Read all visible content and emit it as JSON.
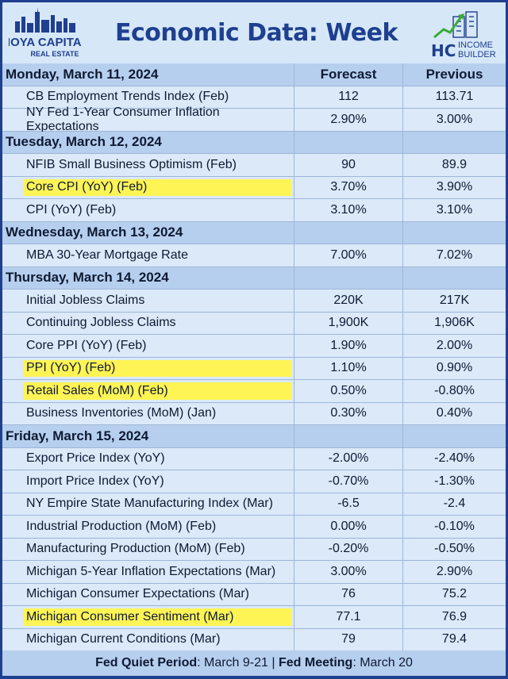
{
  "header": {
    "logo_left_line1": "HOYA CAPITAL",
    "logo_left_line2": "REAL ESTATE",
    "title": "Economic Data: Week Ahead",
    "logo_right_mark": "HC",
    "logo_right_line1": "INCOME",
    "logo_right_line2": "BUILDER"
  },
  "columns": {
    "forecast": "Forecast",
    "previous": "Previous"
  },
  "days": [
    {
      "date": "Monday, March 11, 2024",
      "items": [
        {
          "label": "CB Employment Trends Index (Feb)",
          "forecast": "112",
          "previous": "113.71",
          "highlight": false
        },
        {
          "label": "NY Fed 1-Year Consumer Inflation Expectations",
          "forecast": "2.90%",
          "previous": "3.00%",
          "highlight": false
        }
      ]
    },
    {
      "date": "Tuesday, March 12, 2024",
      "items": [
        {
          "label": "NFIB Small Business Optimism (Feb)",
          "forecast": "90",
          "previous": "89.9",
          "highlight": false
        },
        {
          "label": "Core CPI (YoY) (Feb)",
          "forecast": "3.70%",
          "previous": "3.90%",
          "highlight": true
        },
        {
          "label": "CPI (YoY) (Feb)",
          "forecast": "3.10%",
          "previous": "3.10%",
          "highlight": false
        }
      ]
    },
    {
      "date": "Wednesday, March 13, 2024",
      "items": [
        {
          "label": "MBA 30-Year Mortgage Rate",
          "forecast": "7.00%",
          "previous": "7.02%",
          "highlight": false
        }
      ]
    },
    {
      "date": "Thursday, March 14, 2024",
      "items": [
        {
          "label": "Initial Jobless Claims",
          "forecast": "220K",
          "previous": "217K",
          "highlight": false
        },
        {
          "label": "Continuing Jobless Claims",
          "forecast": "1,900K",
          "previous": "1,906K",
          "highlight": false
        },
        {
          "label": "Core PPI (YoY) (Feb)",
          "forecast": "1.90%",
          "previous": "2.00%",
          "highlight": false
        },
        {
          "label": "PPI (YoY) (Feb)",
          "forecast": "1.10%",
          "previous": "0.90%",
          "highlight": true
        },
        {
          "label": "Retail Sales (MoM) (Feb)",
          "forecast": "0.50%",
          "previous": "-0.80%",
          "highlight": true
        },
        {
          "label": "Business Inventories (MoM) (Jan)",
          "forecast": "0.30%",
          "previous": "0.40%",
          "highlight": false
        }
      ]
    },
    {
      "date": "Friday, March 15, 2024",
      "items": [
        {
          "label": "Export Price Index (YoY)",
          "forecast": "-2.00%",
          "previous": "-2.40%",
          "highlight": false
        },
        {
          "label": "Import Price Index (YoY)",
          "forecast": "-0.70%",
          "previous": "-1.30%",
          "highlight": false
        },
        {
          "label": "NY Empire State Manufacturing Index (Mar)",
          "forecast": "-6.5",
          "previous": "-2.4",
          "highlight": false
        },
        {
          "label": "Industrial Production (MoM) (Feb)",
          "forecast": "0.00%",
          "previous": "-0.10%",
          "highlight": false
        },
        {
          "label": "Manufacturing Production (MoM) (Feb)",
          "forecast": "-0.20%",
          "previous": "-0.50%",
          "highlight": false
        },
        {
          "label": "Michigan 5-Year Inflation Expectations (Mar)",
          "forecast": "3.00%",
          "previous": "2.90%",
          "highlight": false
        },
        {
          "label": "Michigan Consumer Expectations (Mar)",
          "forecast": "76",
          "previous": "75.2",
          "highlight": false
        },
        {
          "label": "Michigan Consumer Sentiment (Mar)",
          "forecast": "77.1",
          "previous": "76.9",
          "highlight": true
        },
        {
          "label": "Michigan Current Conditions (Mar)",
          "forecast": "79",
          "previous": "79.4",
          "highlight": false
        }
      ]
    }
  ],
  "footer": {
    "quiet_label": "Fed Quiet Period",
    "quiet_value": ": March 9-21 | ",
    "meeting_label": "Fed Meeting",
    "meeting_value": ": March 20"
  },
  "colors": {
    "frame": "#1f3f8f",
    "section_bg": "#b7cfee",
    "row_bg": "#dbe9f8",
    "highlight": "#fff455",
    "title": "#1f3f8f"
  }
}
